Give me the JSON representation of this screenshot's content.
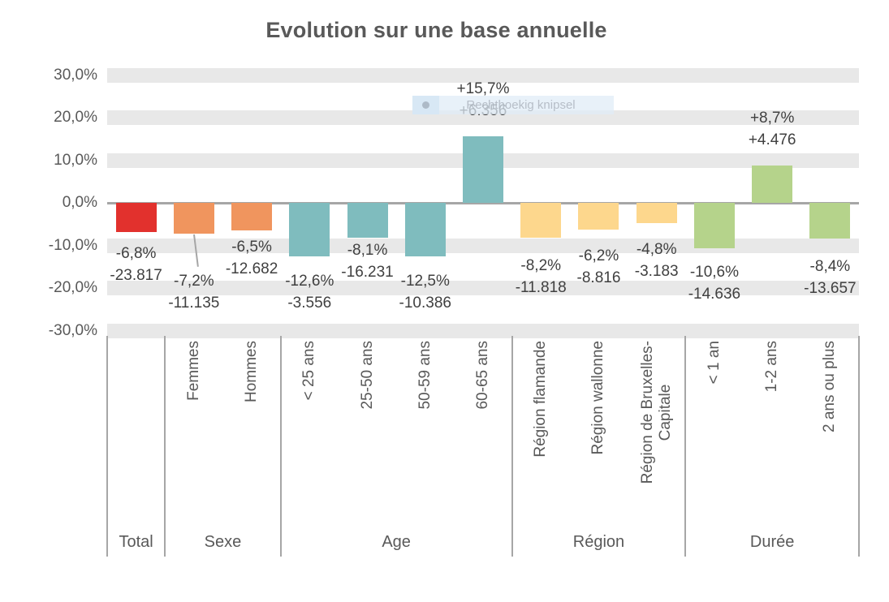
{
  "snip_overlay": {
    "label": "Rechthoekig knipsel",
    "icon": "circle-dot-icon"
  },
  "colors": {
    "band": "#e8e8e8",
    "axis_line": "#a6a6a6",
    "tick_text": "#595959",
    "label_text": "#404040",
    "title_text": "#595959",
    "group_total": "#e2312d",
    "group_sexe": "#f0955e",
    "group_age": "#7fbcbe",
    "group_region": "#fdd78d",
    "group_duree": "#b5d38b"
  },
  "chart_data": {
    "type": "bar",
    "title": "Evolution sur une base annuelle",
    "xlabel": "",
    "ylabel": "",
    "unit": "%",
    "ylim": [
      -32.5,
      32.5
    ],
    "grid": "horizontal-thick-bands",
    "legend": "none",
    "y_ticks": [
      {
        "value": 30,
        "label": "30,0%"
      },
      {
        "value": 20,
        "label": "20,0%"
      },
      {
        "value": 10,
        "label": "10,0%"
      },
      {
        "value": 0,
        "label": "0,0%"
      },
      {
        "value": -10,
        "label": "-10,0%"
      },
      {
        "value": -20,
        "label": "-20,0%"
      },
      {
        "value": -30,
        "label": "-30,0%"
      }
    ],
    "groups": [
      {
        "label": "Total",
        "color": "#e2312d",
        "points": [
          {
            "category": "",
            "value_pct": -6.8,
            "label_pct": "-6,8%",
            "label_abs": "-23.817",
            "label_gap": 13
          }
        ]
      },
      {
        "label": "Sexe",
        "color": "#f0955e",
        "points": [
          {
            "category": "Femmes",
            "value_pct": -7.2,
            "label_pct": "-7,2%",
            "label_abs": "-11.135",
            "label_gap": 45,
            "leader_line": true
          },
          {
            "category": "Hommes",
            "value_pct": -6.5,
            "label_pct": "-6,5%",
            "label_abs": "-12.682",
            "label_gap": 7
          }
        ]
      },
      {
        "label": "Age",
        "color": "#7fbcbe",
        "points": [
          {
            "category": "< 25 ans",
            "value_pct": -12.6,
            "label_pct": "-12,6%",
            "label_abs": "-3.556",
            "label_gap": 17
          },
          {
            "category": "25-50 ans",
            "value_pct": -8.1,
            "label_pct": "-8,1%",
            "label_abs": "-16.231",
            "label_gap": 2
          },
          {
            "category": "50-59 ans",
            "value_pct": -12.5,
            "label_pct": "-12,5%",
            "label_abs": "-10.386",
            "label_gap": 17
          },
          {
            "category": "60-65 ans",
            "value_pct": 15.7,
            "label_pct": "+15,7%",
            "label_abs": "+6.356",
            "label_gap": 18
          }
        ]
      },
      {
        "label": "Région",
        "color": "#fdd78d",
        "points": [
          {
            "category": "Région flamande",
            "value_pct": -8.2,
            "label_pct": "-8,2%",
            "label_abs": "-11.818",
            "label_gap": 21
          },
          {
            "category": "Région wallonne",
            "value_pct": -6.2,
            "label_pct": "-6,2%",
            "label_abs": "-8.816",
            "label_gap": 19
          },
          {
            "category": "Région de Bruxelles-\nCapitale",
            "value_pct": -4.8,
            "label_pct": "-4,8%",
            "label_abs": "-3.183",
            "label_gap": 19
          }
        ]
      },
      {
        "label": "Durée",
        "color": "#b5d38b",
        "points": [
          {
            "category": "< 1 an",
            "value_pct": -10.6,
            "label_pct": "-10,6%",
            "label_abs": "-14.636",
            "label_gap": 16
          },
          {
            "category": "1-2 ans",
            "value_pct": 8.7,
            "label_pct": "+8,7%",
            "label_abs": "+4.476",
            "label_gap": 18
          },
          {
            "category": "2 ans ou plus",
            "value_pct": -8.4,
            "label_pct": "-8,4%",
            "label_abs": "-13.657",
            "label_gap": 21
          }
        ]
      }
    ]
  }
}
